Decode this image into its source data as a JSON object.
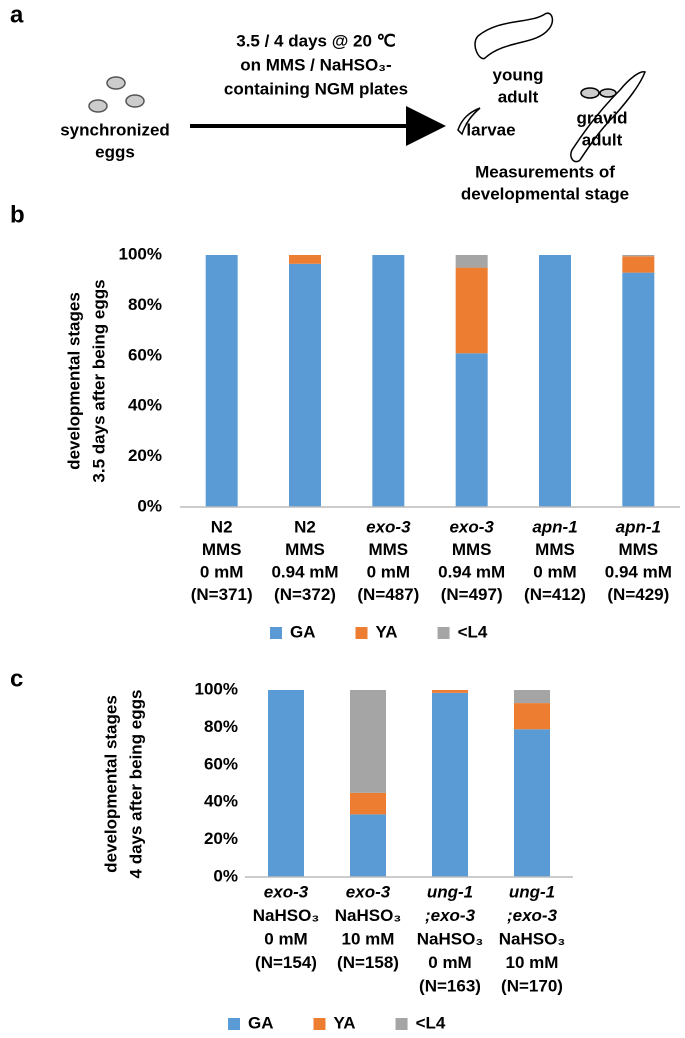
{
  "panel_labels": [
    "a",
    "b",
    "c"
  ],
  "diagram": {
    "eggs": [
      "synchronized",
      "eggs"
    ],
    "condition": [
      "3.5 / 4 days @ 20 ℃",
      "on MMS / NaHSO₃-",
      "containing NGM plates"
    ],
    "young_adult": [
      "young",
      "adult"
    ],
    "larvae": "larvae",
    "gravid_adult": [
      "gravid",
      "adult"
    ],
    "measurement": [
      "Measurements of",
      "developmental stage"
    ]
  },
  "chart_data": [
    {
      "type": "stacked_bar",
      "ylabel": [
        "developmental stages",
        "3.5 days after being eggs"
      ],
      "categories": [
        {
          "strain": "N2",
          "treatment": "MMS",
          "dose": "0 mM",
          "n": "(N=371)"
        },
        {
          "strain": "N2",
          "treatment": "MMS",
          "dose": "0.94 mM",
          "n": "(N=372)"
        },
        {
          "genotype": [
            "exo-3"
          ],
          "treatment": "MMS",
          "dose": "0 mM",
          "n": "(N=487)"
        },
        {
          "genotype": [
            "exo-3"
          ],
          "treatment": "MMS",
          "dose": "0.94 mM",
          "n": "(N=497)"
        },
        {
          "genotype": [
            "apn-1"
          ],
          "treatment": "MMS",
          "dose": "0 mM",
          "n": "(N=412)"
        },
        {
          "genotype": [
            "apn-1"
          ],
          "treatment": "MMS",
          "dose": "0.94 mM",
          "n": "(N=429)"
        }
      ],
      "series": [
        {
          "name": "GA",
          "color": "#5b9bd5",
          "values": [
            100,
            96.5,
            100,
            61,
            100,
            93
          ]
        },
        {
          "name": "YA",
          "color": "#ed7d31",
          "values": [
            0,
            3.5,
            0,
            34,
            0,
            6.5
          ]
        },
        {
          "name": "<L4",
          "color": "#a5a5a5",
          "values": [
            0,
            0,
            0,
            5,
            0,
            0.5
          ]
        }
      ],
      "ylim": [
        0,
        100
      ],
      "yticks": [
        {
          "value": 0,
          "label": "0%"
        },
        {
          "value": 20,
          "label": "20%"
        },
        {
          "value": 40,
          "label": "40%"
        },
        {
          "value": 60,
          "label": "60%"
        },
        {
          "value": 80,
          "label": "80%"
        },
        {
          "value": 100,
          "label": "100%"
        }
      ],
      "legend": "bottom"
    },
    {
      "type": "stacked_bar",
      "ylabel": [
        "developmental stages",
        "4 days after being eggs"
      ],
      "categories": [
        {
          "genotype": [
            "exo-3"
          ],
          "treatment": "NaHSO₃",
          "dose": "0 mM",
          "n": "(N=154)"
        },
        {
          "genotype": [
            "exo-3"
          ],
          "treatment": "NaHSO₃",
          "dose": "10 mM",
          "n": "(N=158)"
        },
        {
          "genotype": [
            "ung-1",
            ";exo-3"
          ],
          "treatment": "NaHSO₃",
          "dose": "0 mM",
          "n": "(N=163)"
        },
        {
          "genotype": [
            "ung-1",
            ";exo-3"
          ],
          "treatment": "NaHSO₃",
          "dose": "10 mM",
          "n": "(N=170)"
        }
      ],
      "series": [
        {
          "name": "GA",
          "color": "#5b9bd5",
          "values": [
            100,
            33.5,
            98.5,
            79
          ]
        },
        {
          "name": "YA",
          "color": "#ed7d31",
          "values": [
            0,
            11.5,
            1.5,
            14
          ]
        },
        {
          "name": "<L4",
          "color": "#a5a5a5",
          "values": [
            0,
            55,
            0,
            7
          ]
        }
      ],
      "ylim": [
        0,
        100
      ],
      "yticks": [
        {
          "value": 0,
          "label": "0%"
        },
        {
          "value": 20,
          "label": "20%"
        },
        {
          "value": 40,
          "label": "40%"
        },
        {
          "value": 60,
          "label": "60%"
        },
        {
          "value": 80,
          "label": "80%"
        },
        {
          "value": 100,
          "label": "100%"
        }
      ],
      "legend": "bottom"
    }
  ]
}
